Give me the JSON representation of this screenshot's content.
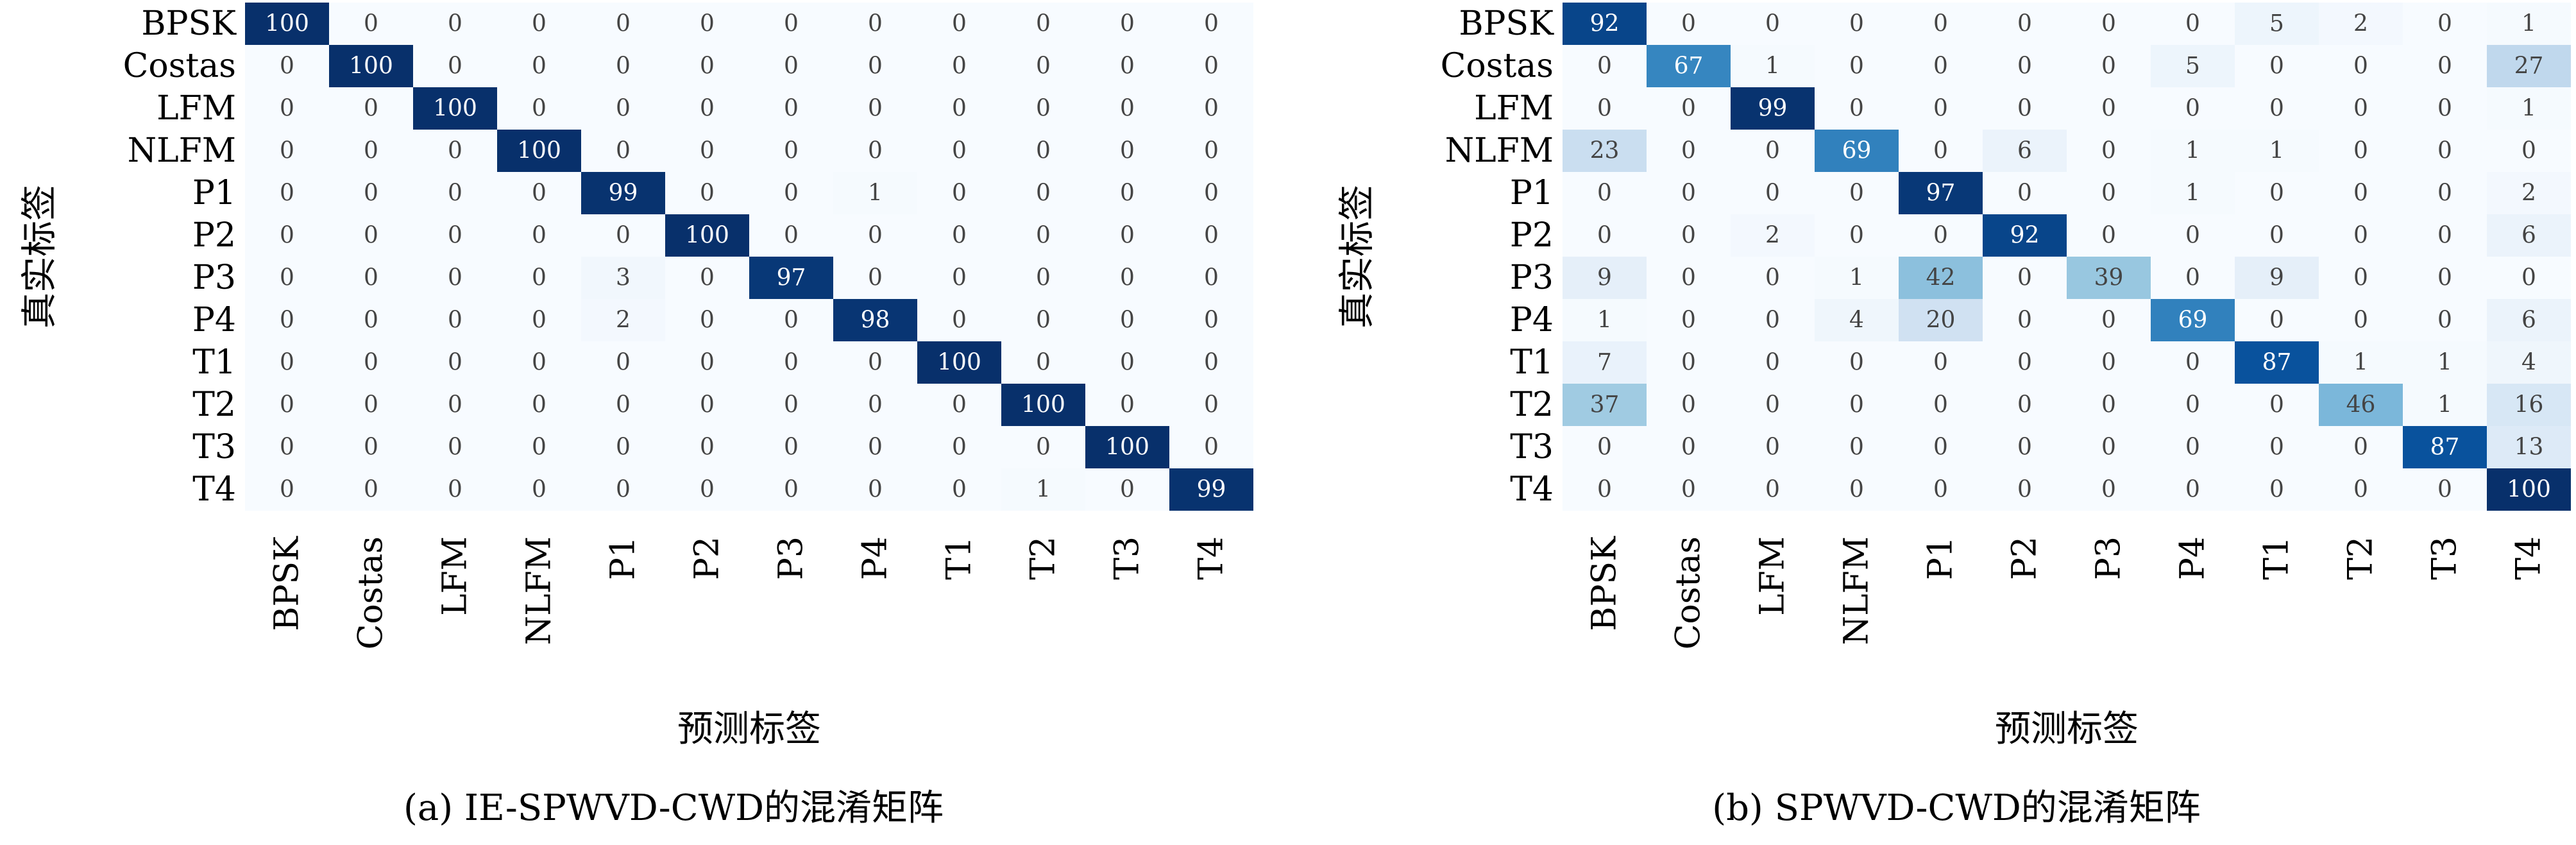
{
  "chart_data": [
    {
      "type": "heatmap",
      "caption": "(a) IE-SPWVD-CWD的混淆矩阵",
      "xlabel": "预测标签",
      "ylabel": "真实标签",
      "categories": [
        "BPSK",
        "Costas",
        "LFM",
        "NLFM",
        "P1",
        "P2",
        "P3",
        "P4",
        "T1",
        "T2",
        "T3",
        "T4"
      ],
      "value_range": [
        0,
        100
      ],
      "colormap": "Blues",
      "matrix": [
        [
          100,
          0,
          0,
          0,
          0,
          0,
          0,
          0,
          0,
          0,
          0,
          0
        ],
        [
          0,
          100,
          0,
          0,
          0,
          0,
          0,
          0,
          0,
          0,
          0,
          0
        ],
        [
          0,
          0,
          100,
          0,
          0,
          0,
          0,
          0,
          0,
          0,
          0,
          0
        ],
        [
          0,
          0,
          0,
          100,
          0,
          0,
          0,
          0,
          0,
          0,
          0,
          0
        ],
        [
          0,
          0,
          0,
          0,
          99,
          0,
          0,
          1,
          0,
          0,
          0,
          0
        ],
        [
          0,
          0,
          0,
          0,
          0,
          100,
          0,
          0,
          0,
          0,
          0,
          0
        ],
        [
          0,
          0,
          0,
          0,
          3,
          0,
          97,
          0,
          0,
          0,
          0,
          0
        ],
        [
          0,
          0,
          0,
          0,
          2,
          0,
          0,
          98,
          0,
          0,
          0,
          0
        ],
        [
          0,
          0,
          0,
          0,
          0,
          0,
          0,
          0,
          100,
          0,
          0,
          0
        ],
        [
          0,
          0,
          0,
          0,
          0,
          0,
          0,
          0,
          0,
          100,
          0,
          0
        ],
        [
          0,
          0,
          0,
          0,
          0,
          0,
          0,
          0,
          0,
          0,
          100,
          0
        ],
        [
          0,
          0,
          0,
          0,
          0,
          0,
          0,
          0,
          0,
          1,
          0,
          99
        ]
      ]
    },
    {
      "type": "heatmap",
      "caption": "(b) SPWVD-CWD的混淆矩阵",
      "xlabel": "预测标签",
      "ylabel": "真实标签",
      "categories": [
        "BPSK",
        "Costas",
        "LFM",
        "NLFM",
        "P1",
        "P2",
        "P3",
        "P4",
        "T1",
        "T2",
        "T3",
        "T4"
      ],
      "value_range": [
        0,
        100
      ],
      "colormap": "Blues",
      "matrix": [
        [
          92,
          0,
          0,
          0,
          0,
          0,
          0,
          0,
          5,
          2,
          0,
          1
        ],
        [
          0,
          67,
          1,
          0,
          0,
          0,
          0,
          5,
          0,
          0,
          0,
          27
        ],
        [
          0,
          0,
          99,
          0,
          0,
          0,
          0,
          0,
          0,
          0,
          0,
          1
        ],
        [
          23,
          0,
          0,
          69,
          0,
          6,
          0,
          1,
          1,
          0,
          0,
          0
        ],
        [
          0,
          0,
          0,
          0,
          97,
          0,
          0,
          1,
          0,
          0,
          0,
          2
        ],
        [
          0,
          0,
          2,
          0,
          0,
          92,
          0,
          0,
          0,
          0,
          0,
          6
        ],
        [
          9,
          0,
          0,
          1,
          42,
          0,
          39,
          0,
          9,
          0,
          0,
          0
        ],
        [
          1,
          0,
          0,
          4,
          20,
          0,
          0,
          69,
          0,
          0,
          0,
          6
        ],
        [
          7,
          0,
          0,
          0,
          0,
          0,
          0,
          0,
          87,
          1,
          1,
          4
        ],
        [
          37,
          0,
          0,
          0,
          0,
          0,
          0,
          0,
          0,
          46,
          1,
          16
        ],
        [
          0,
          0,
          0,
          0,
          0,
          0,
          0,
          0,
          0,
          0,
          87,
          13
        ],
        [
          0,
          0,
          0,
          0,
          0,
          0,
          0,
          0,
          0,
          0,
          0,
          100
        ]
      ]
    }
  ]
}
